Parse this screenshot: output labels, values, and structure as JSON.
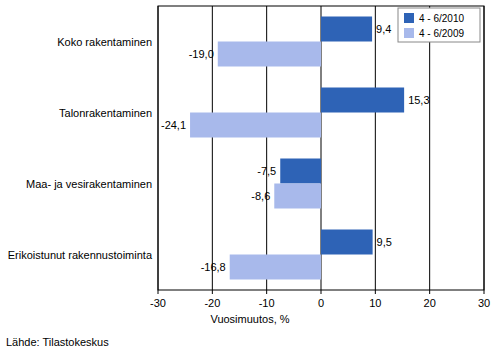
{
  "chart_data": {
    "type": "bar",
    "orientation": "horizontal",
    "categories": [
      "Koko rakentaminen",
      "Talonrakentaminen",
      "Maa- ja vesirakentaminen",
      "Erikoistunut rakennustoiminta"
    ],
    "series": [
      {
        "name": "4 - 6/2010",
        "color": "#2e63b6",
        "values": [
          9.4,
          15.3,
          -7.5,
          9.5
        ],
        "value_labels": [
          "9,4",
          "15,3",
          "-7,5",
          "9,5"
        ]
      },
      {
        "name": "4 - 6/2009",
        "color": "#a8b9eb",
        "values": [
          -19.0,
          -24.1,
          -8.6,
          -16.8
        ],
        "value_labels": [
          "-19,0",
          "-24,1",
          "-8,6",
          "-16,8"
        ]
      }
    ],
    "x_label": "Vuosimuutos, %",
    "xlim": [
      -30,
      30
    ],
    "xticks": [
      -30,
      -20,
      -10,
      0,
      10,
      20,
      30
    ],
    "grid": true,
    "legend": "upper right",
    "data_labels": true,
    "annotations": [
      "Lähde: Tilastokeskus"
    ]
  }
}
